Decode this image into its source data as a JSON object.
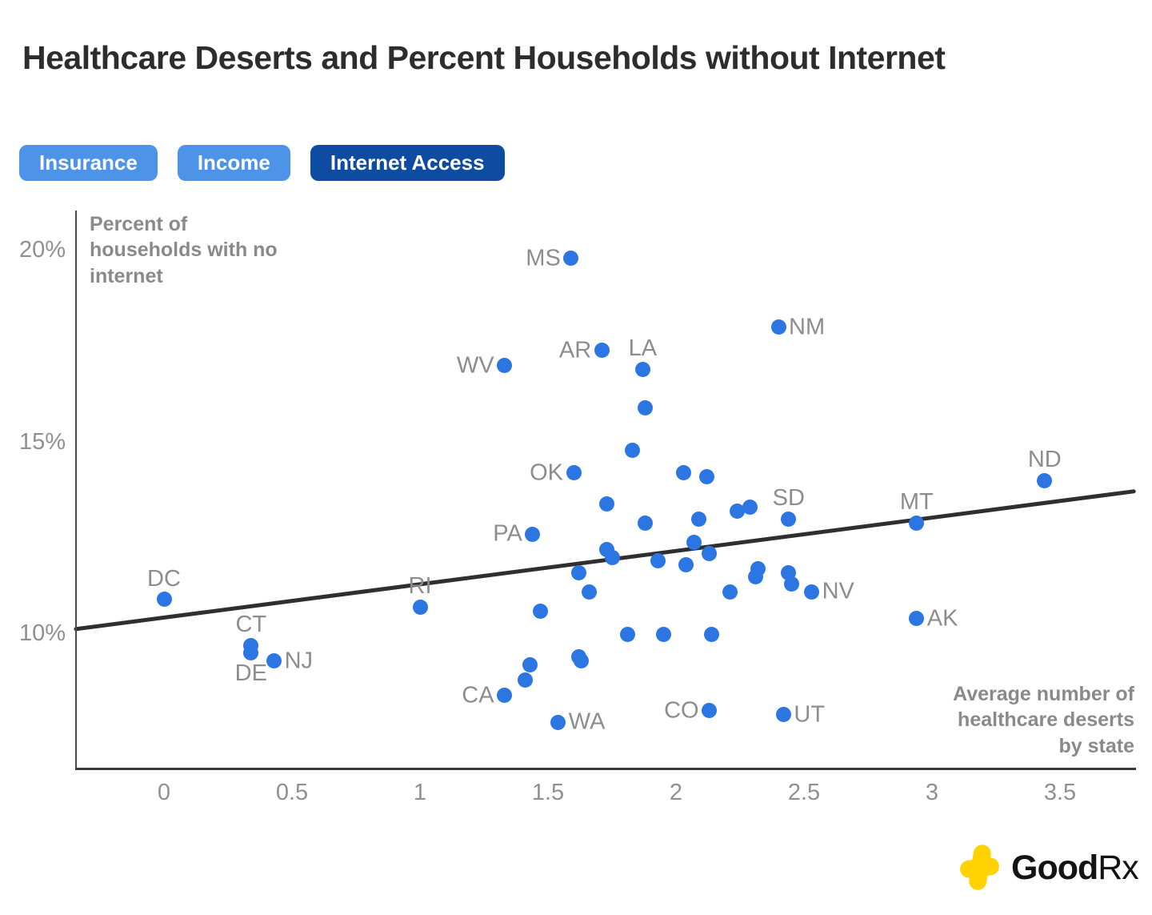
{
  "title": "Healthcare Deserts and Percent Households without Internet",
  "tabs": [
    {
      "label": "Insurance",
      "active": false
    },
    {
      "label": "Income",
      "active": false
    },
    {
      "label": "Internet Access",
      "active": true
    }
  ],
  "colors": {
    "tab_inactive": "#4D94E8",
    "tab_active": "#0D4CA1",
    "dot_blue": "#2B76E3",
    "trend_line": "#2f2f2f",
    "gray_text": "#8d8d8d",
    "logo_yellow": "#FFD200"
  },
  "logo": {
    "text_bold": "Good",
    "text_regular": "Rx"
  },
  "chart_data": {
    "type": "scatter",
    "title": "Healthcare Deserts and Percent Households without Internet",
    "xlabel": "Average number of healthcare deserts by state",
    "ylabel": "Percent of households with no internet",
    "xlabel_lines": [
      "Average number of",
      "healthcare deserts",
      "by state"
    ],
    "ylabel_lines": [
      "Percent of",
      "households with no",
      "internet"
    ],
    "xlim": [
      -0.34,
      3.8
    ],
    "ylim": [
      6.5,
      21.0
    ],
    "grid": false,
    "legend": "none",
    "x_ticks": [
      {
        "label": "0",
        "value": 0
      },
      {
        "label": "0.5",
        "value": 0.5
      },
      {
        "label": "1",
        "value": 1
      },
      {
        "label": "1.5",
        "value": 1.5
      },
      {
        "label": "2",
        "value": 2
      },
      {
        "label": "2.5",
        "value": 2.5
      },
      {
        "label": "3",
        "value": 3
      },
      {
        "label": "3.5",
        "value": 3.5
      }
    ],
    "y_ticks": [
      {
        "label": "20%",
        "value": 20
      },
      {
        "label": "15%",
        "value": 15
      },
      {
        "label": "10%",
        "value": 10
      }
    ],
    "trend_line": {
      "x1": -0.344,
      "y1": 10.13,
      "x2": 3.788,
      "y2": 13.72
    },
    "points": [
      {
        "label": "DC",
        "x": 0.0,
        "y": 10.9,
        "label_pos": "above"
      },
      {
        "label": "CT",
        "x": 0.34,
        "y": 9.7,
        "label_pos": "above"
      },
      {
        "label": "DE",
        "x": 0.34,
        "y": 9.5,
        "label_pos": "below"
      },
      {
        "label": "NJ",
        "x": 0.43,
        "y": 9.3,
        "label_pos": "right"
      },
      {
        "label": "RI",
        "x": 1.0,
        "y": 10.7,
        "label_pos": "above"
      },
      {
        "label": "CA",
        "x": 1.33,
        "y": 8.4,
        "label_pos": "left"
      },
      {
        "label": "WV",
        "x": 1.33,
        "y": 17.0,
        "label_pos": "left"
      },
      {
        "label": "PA",
        "x": 1.44,
        "y": 12.6,
        "label_pos": "left"
      },
      {
        "label": "WA",
        "x": 1.54,
        "y": 7.7,
        "label_pos": "right"
      },
      {
        "label": "MS",
        "x": 1.59,
        "y": 19.8,
        "label_pos": "left"
      },
      {
        "label": "OK",
        "x": 1.6,
        "y": 14.2,
        "label_pos": "left"
      },
      {
        "label": "AR",
        "x": 1.71,
        "y": 17.4,
        "label_pos": "left"
      },
      {
        "label": "LA",
        "x": 1.87,
        "y": 16.9,
        "label_pos": "above"
      },
      {
        "label": "CO",
        "x": 2.13,
        "y": 8.0,
        "label_pos": "left"
      },
      {
        "label": "NM",
        "x": 2.4,
        "y": 18.0,
        "label_pos": "right"
      },
      {
        "label": "UT",
        "x": 2.42,
        "y": 7.9,
        "label_pos": "right"
      },
      {
        "label": "SD",
        "x": 2.44,
        "y": 13.0,
        "label_pos": "above"
      },
      {
        "label": "NV",
        "x": 2.53,
        "y": 11.1,
        "label_pos": "right"
      },
      {
        "label": "MT",
        "x": 2.94,
        "y": 12.9,
        "label_pos": "above"
      },
      {
        "label": "AK",
        "x": 2.94,
        "y": 10.4,
        "label_pos": "right"
      },
      {
        "label": "ND",
        "x": 3.44,
        "y": 14.0,
        "label_pos": "above"
      },
      {
        "x": 1.88,
        "y": 15.9
      },
      {
        "x": 1.83,
        "y": 14.8
      },
      {
        "x": 2.03,
        "y": 14.2
      },
      {
        "x": 2.12,
        "y": 14.1
      },
      {
        "x": 1.73,
        "y": 13.4
      },
      {
        "x": 2.24,
        "y": 13.2
      },
      {
        "x": 2.29,
        "y": 13.3
      },
      {
        "x": 2.09,
        "y": 13.0
      },
      {
        "x": 1.88,
        "y": 12.9
      },
      {
        "x": 2.07,
        "y": 12.4
      },
      {
        "x": 1.73,
        "y": 12.2
      },
      {
        "x": 1.75,
        "y": 12.0
      },
      {
        "x": 2.13,
        "y": 12.1
      },
      {
        "x": 1.93,
        "y": 11.9
      },
      {
        "x": 2.04,
        "y": 11.8
      },
      {
        "x": 2.32,
        "y": 11.7
      },
      {
        "x": 2.31,
        "y": 11.5
      },
      {
        "x": 2.44,
        "y": 11.6
      },
      {
        "x": 2.45,
        "y": 11.3
      },
      {
        "x": 2.21,
        "y": 11.1
      },
      {
        "x": 1.62,
        "y": 11.6
      },
      {
        "x": 1.66,
        "y": 11.1
      },
      {
        "x": 1.47,
        "y": 10.6
      },
      {
        "x": 1.81,
        "y": 10.0
      },
      {
        "x": 1.95,
        "y": 10.0
      },
      {
        "x": 2.14,
        "y": 10.0
      },
      {
        "x": 1.62,
        "y": 9.4
      },
      {
        "x": 1.63,
        "y": 9.3
      },
      {
        "x": 1.43,
        "y": 9.2
      },
      {
        "x": 1.41,
        "y": 8.8
      }
    ]
  }
}
